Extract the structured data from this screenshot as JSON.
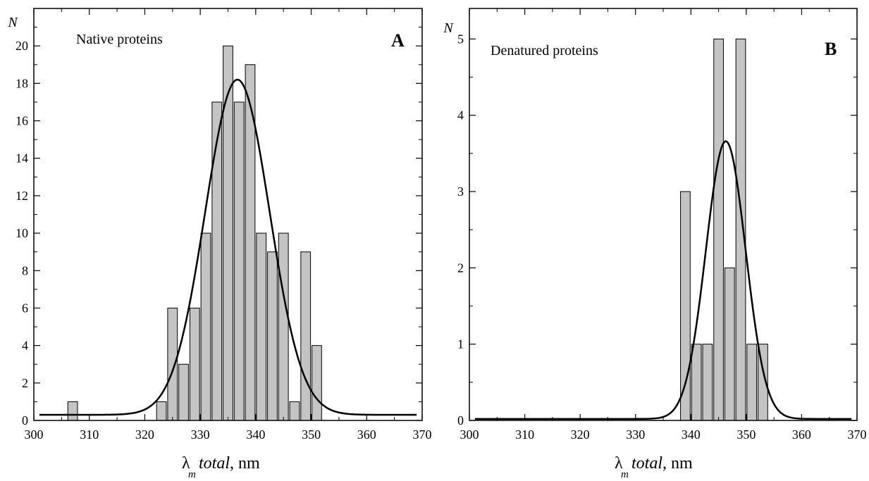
{
  "colors": {
    "bar_fill": "#c4c4c4",
    "bar_stroke": "#000000",
    "curve": "#000000",
    "axis": "#000000"
  },
  "chart_data": [
    {
      "type": "bar",
      "panel": "A",
      "title": "Native proteins",
      "xlabel": {
        "symbol": "λ",
        "subscript": "m",
        "italic": "total",
        "unit": ", nm"
      },
      "ylabel": "N",
      "xlim": [
        300,
        370
      ],
      "ylim": [
        0,
        22
      ],
      "xticks": [
        300,
        310,
        320,
        330,
        340,
        350,
        360,
        370
      ],
      "yticks": [
        0,
        2,
        4,
        6,
        8,
        10,
        12,
        14,
        16,
        18,
        20
      ],
      "bin_width": 2,
      "x": [
        307,
        323,
        325,
        327,
        329,
        331,
        333,
        335,
        337,
        339,
        341,
        343,
        345,
        347,
        349,
        351
      ],
      "values": [
        1,
        1,
        6,
        3,
        6,
        10,
        17,
        20,
        17,
        19,
        10,
        9,
        10,
        1,
        9,
        4
      ],
      "fit_curve": {
        "type": "gaussian",
        "baseline": 0.3,
        "amplitude": 17.9,
        "center": 336.7,
        "sigma": 5.8
      }
    },
    {
      "type": "bar",
      "panel": "B",
      "title": "Denatured proteins",
      "xlabel": {
        "symbol": "λ",
        "subscript": "m",
        "italic": "total",
        "unit": ", nm"
      },
      "ylabel": "N",
      "xlim": [
        300,
        370
      ],
      "ylim": [
        0,
        5.4
      ],
      "xticks": [
        300,
        310,
        320,
        330,
        340,
        350,
        360,
        370
      ],
      "yticks": [
        0,
        1,
        2,
        3,
        4,
        5
      ],
      "bin_width": 2,
      "x": [
        339,
        341,
        343,
        345,
        347,
        349,
        351,
        353
      ],
      "values": [
        3,
        1,
        1,
        5,
        2,
        5,
        1,
        1
      ],
      "fit_curve": {
        "type": "gaussian",
        "baseline": 0.02,
        "amplitude": 3.64,
        "center": 346.3,
        "sigma": 3.6
      }
    }
  ]
}
